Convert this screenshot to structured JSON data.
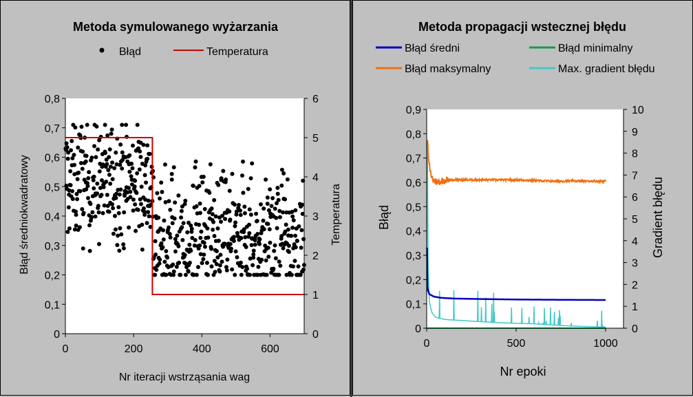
{
  "chart_data": [
    {
      "type": "scatter",
      "title": "Metoda symulowanego wyżarzania",
      "xlabel": "Nr iteracji wstrząsania wag",
      "ylabel": "Błąd średniokwadratowy",
      "y2label": "Temperatura",
      "xlim": [
        0,
        700
      ],
      "ylim": [
        0,
        0.8
      ],
      "y2lim": [
        0,
        6
      ],
      "x_ticks": [
        "0",
        "200",
        "400",
        "600"
      ],
      "y_ticks": [
        "0",
        "0,1",
        "0,2",
        "0,3",
        "0,4",
        "0,5",
        "0,6",
        "0,7",
        "0,8"
      ],
      "y2_ticks": [
        "0",
        "1",
        "2",
        "3",
        "4",
        "5",
        "6"
      ],
      "legend_position": "top",
      "grid": false,
      "series": [
        {
          "name": "Błąd",
          "kind": "scatter",
          "color": "#000000",
          "segments": [
            {
              "x_range": [
                0,
                255
              ],
              "y_min": 0.25,
              "y_max": 0.71,
              "y_mean": 0.52
            },
            {
              "x_range": [
                255,
                700
              ],
              "y_min": 0.2,
              "y_max": 0.59,
              "y_mean": 0.3
            }
          ]
        },
        {
          "name": "Temperatura",
          "kind": "step-line",
          "axis": "right",
          "color": "#cc0000",
          "x": [
            0,
            255,
            255,
            700
          ],
          "y": [
            5,
            5,
            1,
            1
          ]
        }
      ]
    },
    {
      "type": "line",
      "title": "Metoda propagacji wstecznej błędu",
      "xlabel": "Nr epoki",
      "ylabel": "Błąd",
      "y2label": "Gradient błędu",
      "xlim": [
        0,
        1100
      ],
      "ylim": [
        0,
        0.9
      ],
      "y2lim": [
        0,
        10
      ],
      "x_ticks": [
        "0",
        "500",
        "1000"
      ],
      "y_ticks": [
        "0",
        "0,1",
        "0,2",
        "0,3",
        "0,4",
        "0,5",
        "0,6",
        "0,7",
        "0,8",
        "0,9"
      ],
      "y2_ticks": [
        "0",
        "1",
        "2",
        "3",
        "4",
        "5",
        "6",
        "7",
        "8",
        "9",
        "10"
      ],
      "legend_position": "top",
      "grid": false,
      "series": [
        {
          "name": "Błąd średni",
          "color": "#0000c0",
          "x": [
            0,
            5,
            15,
            40,
            80,
            150,
            300,
            500,
            700,
            1000
          ],
          "y": [
            0.2,
            0.16,
            0.14,
            0.13,
            0.125,
            0.122,
            0.12,
            0.118,
            0.117,
            0.116
          ]
        },
        {
          "name": "Błąd minimalny",
          "color": "#1a9850",
          "x": [
            0,
            1000
          ],
          "y": [
            0.0,
            0.0
          ]
        },
        {
          "name": "Błąd maksymalny",
          "color": "#f07010",
          "x": [
            0,
            5,
            10,
            20,
            35,
            60,
            100,
            200,
            300,
            500,
            700,
            1000
          ],
          "y": [
            0.75,
            0.78,
            0.7,
            0.64,
            0.61,
            0.6,
            0.61,
            0.61,
            0.61,
            0.61,
            0.605,
            0.605
          ]
        },
        {
          "name": "Max. gradient błędu",
          "color": "#40c8c8",
          "axis": "right",
          "x": [
            0,
            3,
            8,
            15,
            30,
            50,
            100,
            200,
            400,
            600,
            800,
            1000
          ],
          "y": [
            1.5,
            10,
            3,
            1.2,
            0.7,
            0.5,
            0.4,
            0.35,
            0.25,
            0.2,
            0.1,
            0.05
          ]
        }
      ]
    }
  ]
}
